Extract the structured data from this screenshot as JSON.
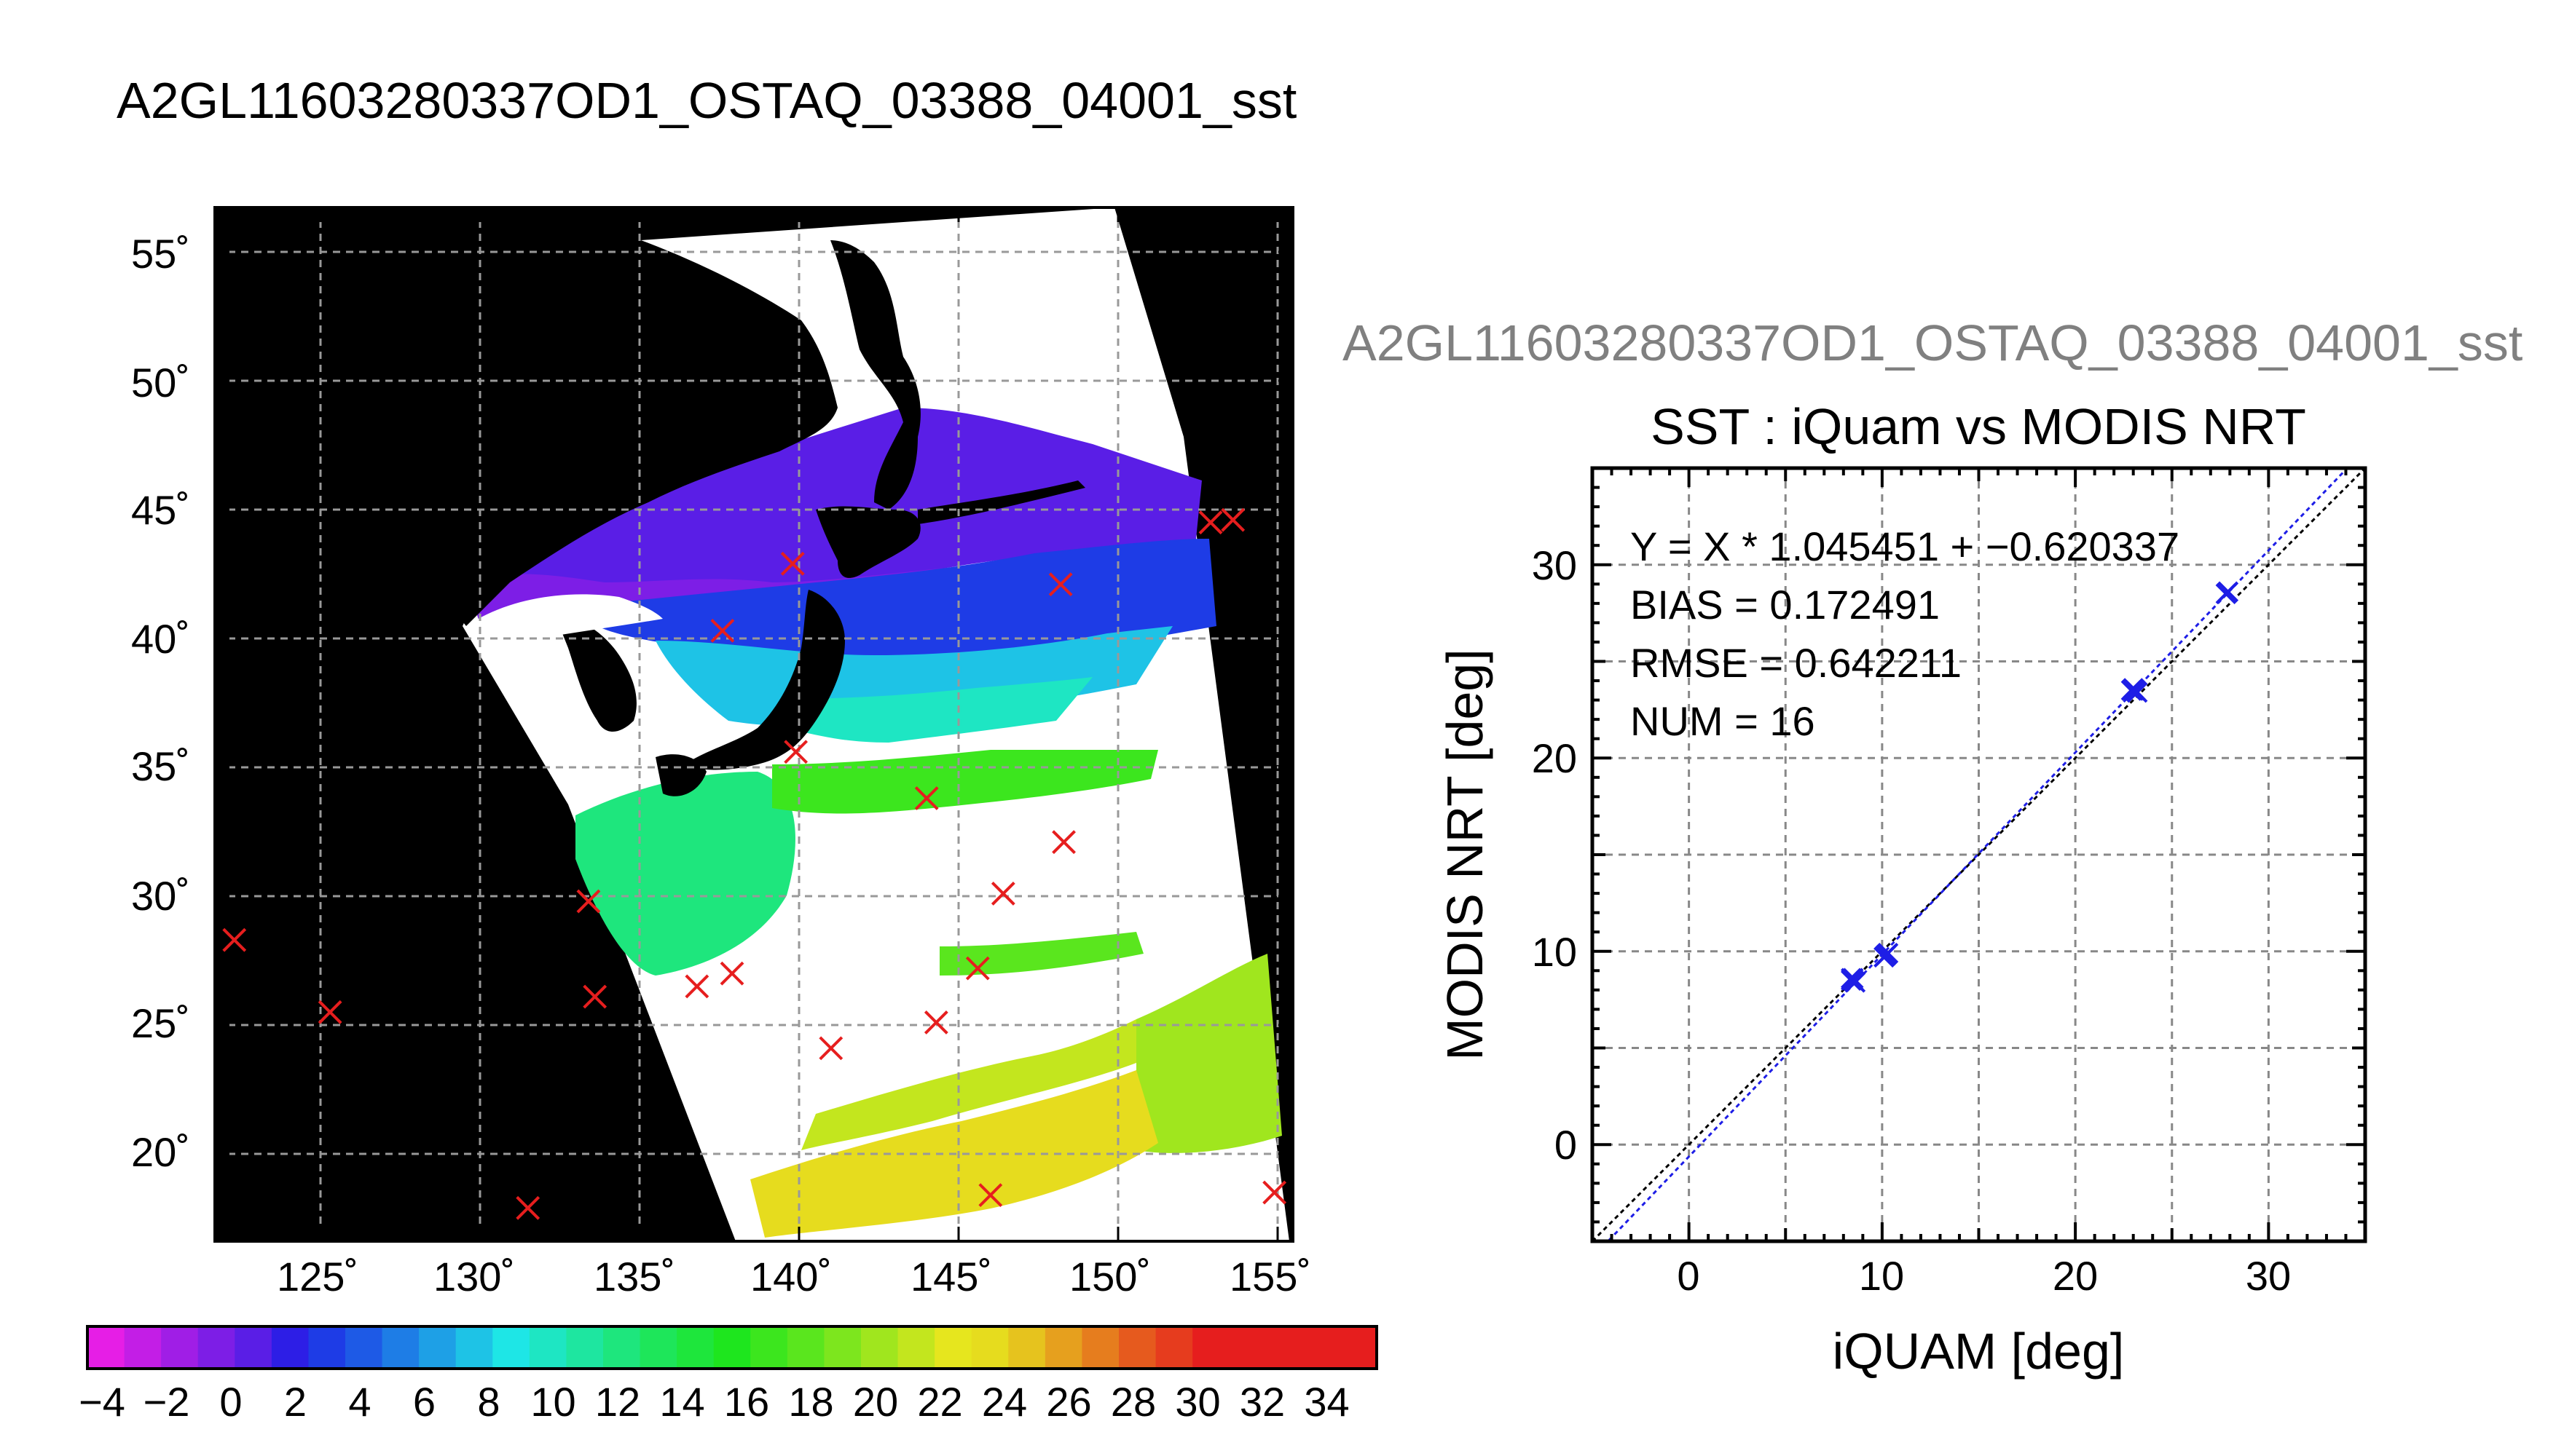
{
  "title": "A2GL11603280337OD1_OSTAQ_03388_04001_sst",
  "map": {
    "lat_ticks": [
      "55˚",
      "50˚",
      "45˚",
      "40˚",
      "35˚",
      "30˚",
      "25˚",
      "20˚"
    ],
    "lon_ticks": [
      "125˚",
      "130˚",
      "135˚",
      "140˚",
      "145˚",
      "150˚",
      "155˚"
    ],
    "colorbar_labels": [
      "−4",
      "−2",
      "0",
      "2",
      "4",
      "6",
      "8",
      "10",
      "12",
      "14",
      "16",
      "18",
      "20",
      "22",
      "24",
      "26",
      "28",
      "30",
      "32",
      "34"
    ],
    "colorbar_colors": [
      "#e61ee6",
      "#c31ee6",
      "#a01ee6",
      "#7d1ee6",
      "#5a1ee6",
      "#2d1ee6",
      "#1e3ce6",
      "#1e5ae6",
      "#1e7de6",
      "#1ea0e6",
      "#1ec3e6",
      "#1ee6e6",
      "#1ee6c3",
      "#1ee6a0",
      "#1ee67d",
      "#1ee65a",
      "#1ee63c",
      "#1ee61e",
      "#3ce61e",
      "#5ae61e",
      "#7de61e",
      "#a0e61e",
      "#c3e61e",
      "#e6e61e",
      "#e6dc1e",
      "#e6c31e",
      "#e6a01e",
      "#e67d1e",
      "#e65a1e",
      "#e63c1e",
      "#e61e1e",
      "#e61e1e",
      "#e61e1e",
      "#e61e1e",
      "#e61e1e"
    ],
    "markers_lonlat": [
      [
        122.3,
        28.3
      ],
      [
        125.3,
        25.5
      ],
      [
        131.5,
        17.9
      ],
      [
        133.6,
        26.1
      ],
      [
        133.4,
        29.8
      ],
      [
        136.8,
        26.5
      ],
      [
        137.9,
        27.0
      ],
      [
        137.6,
        40.3
      ],
      [
        139.8,
        42.9
      ],
      [
        139.9,
        35.6
      ],
      [
        141.0,
        24.1
      ],
      [
        144.0,
        33.8
      ],
      [
        144.3,
        25.1
      ],
      [
        145.6,
        27.2
      ],
      [
        146.4,
        30.1
      ],
      [
        146.0,
        18.4
      ],
      [
        148.3,
        32.1
      ],
      [
        148.2,
        42.1
      ],
      [
        152.9,
        44.5
      ],
      [
        153.6,
        44.6
      ],
      [
        154.9,
        18.5
      ]
    ]
  },
  "scatter": {
    "file_title": "A2GL11603280337OD1_OSTAQ_03388_04001_sst",
    "title": "SST : iQuam vs MODIS NRT",
    "stats": [
      "Y = X * 1.045451 + −0.620337",
      "BIAS = 0.172491",
      "RMSE = 0.642211",
      "NUM = 16"
    ],
    "x_ticks": [
      "0",
      "10",
      "20",
      "30"
    ],
    "y_ticks": [
      "0",
      "10",
      "20",
      "30"
    ]
  },
  "chart_data": {
    "type": "scatter",
    "title": "SST : iQuam vs MODIS NRT",
    "xlabel": "iQUAM [deg]",
    "ylabel": "MODIS NRT [deg]",
    "xlim": [
      -5,
      35
    ],
    "ylim": [
      -5,
      35
    ],
    "grid": true,
    "fit": {
      "slope": 1.045451,
      "intercept": -0.620337
    },
    "series": [
      {
        "x": [
          8.4,
          8.5,
          8.6,
          8.4,
          10.1,
          10.2,
          10.3,
          22.9,
          23.0,
          23.2,
          23.1,
          27.8,
          27.9,
          8.5,
          10.2,
          23.0
        ],
        "y": [
          8.5,
          8.6,
          8.4,
          8.6,
          9.7,
          9.8,
          9.9,
          23.5,
          23.6,
          23.4,
          23.5,
          28.5,
          28.6,
          8.5,
          9.8,
          23.5
        ]
      }
    ]
  }
}
